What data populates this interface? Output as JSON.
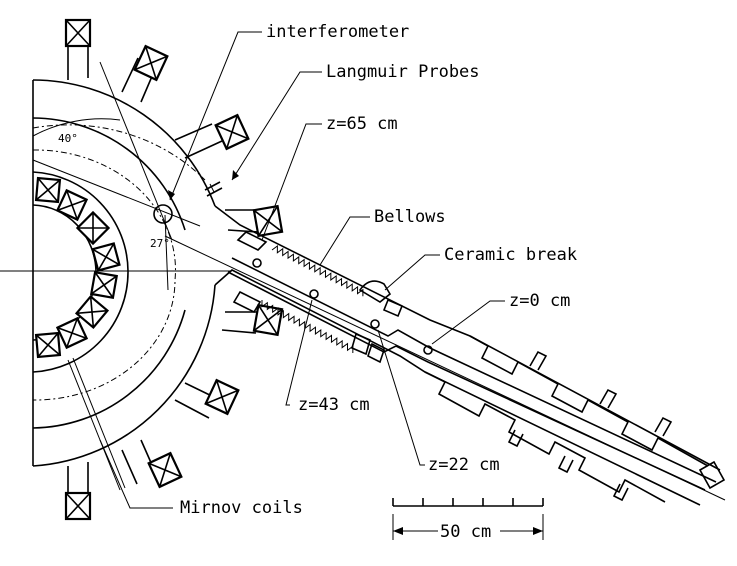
{
  "labels": {
    "interferometer": "interferometer",
    "langmuir": "Langmuir Probes",
    "z65": "z=65 cm",
    "bellows": "Bellows",
    "ceramic": "Ceramic break",
    "z0": "z=0 cm",
    "z43": "z=43 cm",
    "z22": "z=22 cm",
    "mirnov": "Mirnov coils",
    "scale": "50 cm",
    "angle40": "40°",
    "angle27": "27°"
  }
}
